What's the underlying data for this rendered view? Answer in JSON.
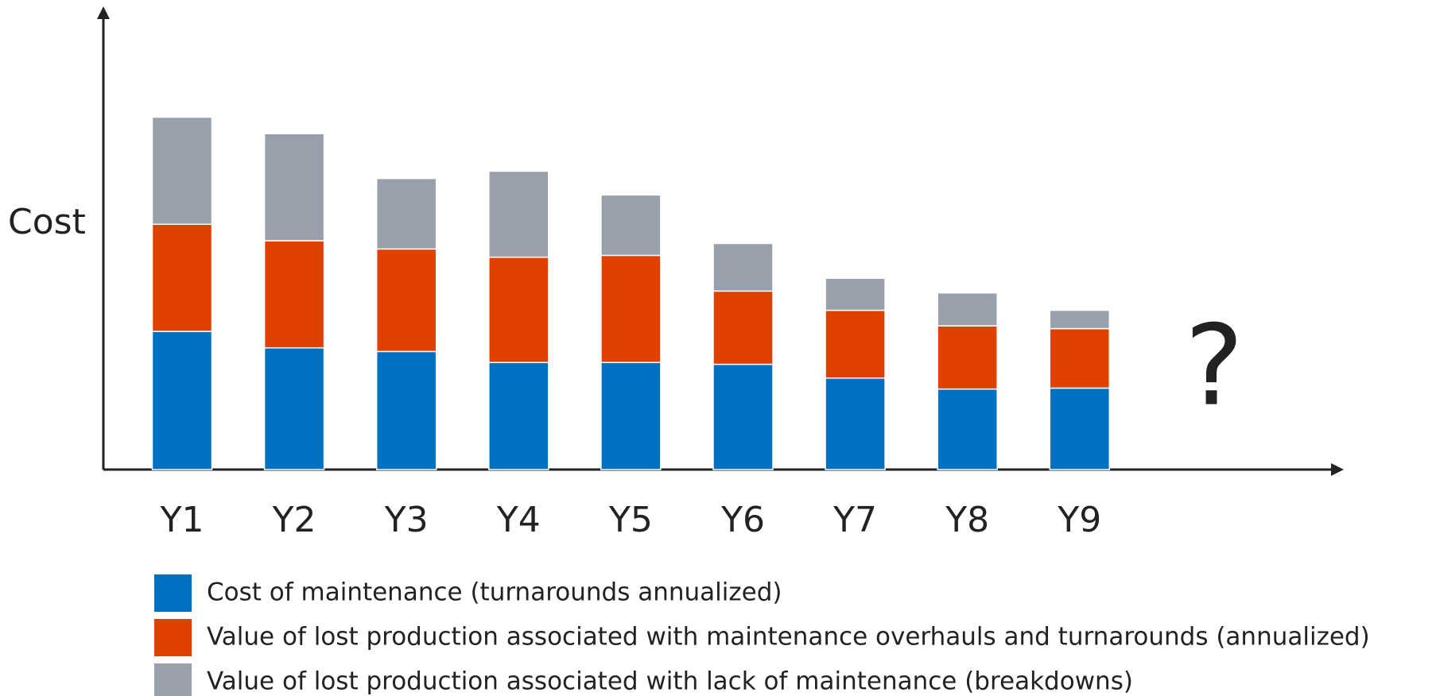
{
  "chart_data": {
    "type": "stacked_bar",
    "y_label": "Cost",
    "annotation": "?",
    "categories": [
      "Y1",
      "Y2",
      "Y3",
      "Y4",
      "Y5",
      "Y6",
      "Y7",
      "Y8",
      "Y9"
    ],
    "series": [
      {
        "name": "Cost of maintenance (turnarounds annualized)",
        "color": "#0070c0",
        "values": [
          30.2,
          26.6,
          25.8,
          23.4,
          23.4,
          23,
          20,
          17.6,
          17.8
        ]
      },
      {
        "name": "Value of lost production associated with maintenance overhauls and turnarounds (annualized)",
        "color": "#e04000",
        "values": [
          23.4,
          23.4,
          22.4,
          23,
          23.4,
          16,
          14.8,
          13.8,
          13
        ]
      },
      {
        "name": "Value of lost production associated with lack of maintenance (breakdowns)",
        "color": "#98a1ab",
        "values": [
          23.4,
          23.4,
          15.4,
          18.8,
          13.2,
          10.4,
          7,
          7.2,
          4
        ]
      }
    ],
    "ylim": [
      0,
      100
    ],
    "legend": "bottom"
  }
}
